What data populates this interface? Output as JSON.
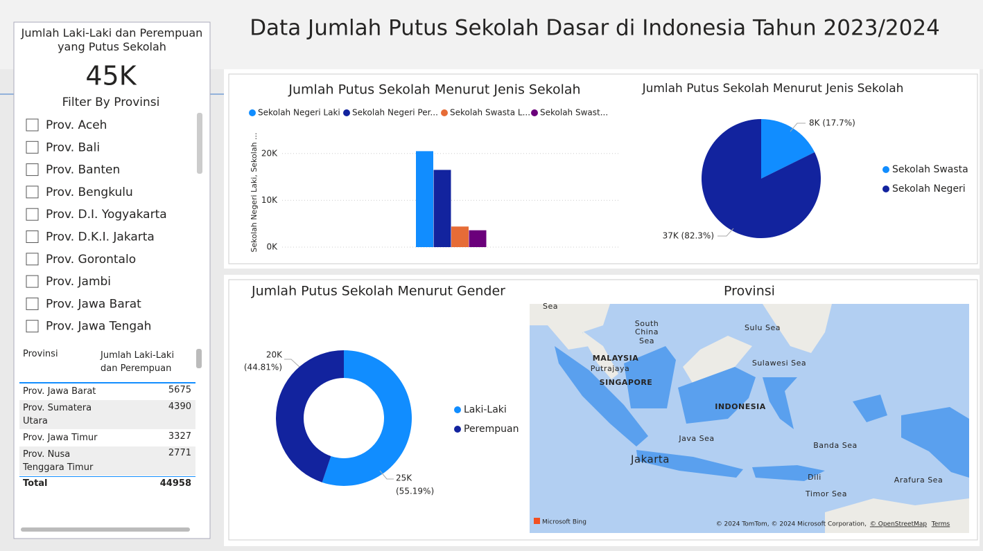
{
  "header": {
    "title": "Data Jumlah Putus Sekolah Dasar di Indonesia Tahun 2023/2024"
  },
  "card": {
    "title": "Jumlah Laki-Laki dan Perempuan yang Putus Sekolah",
    "value": "45K"
  },
  "slicer": {
    "title": "Filter By Provinsi",
    "items": [
      "Prov. Aceh",
      "Prov. Bali",
      "Prov. Banten",
      "Prov. Bengkulu",
      "Prov. D.I. Yogyakarta",
      "Prov. D.K.I. Jakarta",
      "Prov. Gorontalo",
      "Prov. Jambi",
      "Prov. Jawa Barat",
      "Prov. Jawa Tengah"
    ]
  },
  "table": {
    "columns": [
      "Provinsi",
      "Jumlah Laki-Laki dan Perempuan"
    ],
    "rows": [
      [
        "Prov. Jawa Barat",
        5675
      ],
      [
        "Prov. Sumatera Utara",
        4390
      ],
      [
        "Prov. Jawa Timur",
        3327
      ],
      [
        "Prov. Nusa Tenggara Timur",
        2771
      ]
    ],
    "total": [
      "Total",
      44958
    ]
  },
  "chart_data": [
    {
      "type": "bar",
      "title": "Jumlah Putus Sekolah Menurut Jenis Sekolah",
      "y_label": "Sekolah Negeri Laki, Sekolah ...",
      "categories": [
        null
      ],
      "series": [
        {
          "name": "Sekolah Negeri Laki",
          "color": "#118DFF",
          "values": [
            20500
          ]
        },
        {
          "name": "Sekolah Negeri Per...",
          "color": "#12239E",
          "values": [
            16500
          ]
        },
        {
          "name": "Sekolah Swasta L...",
          "color": "#E66C37",
          "values": [
            4400
          ]
        },
        {
          "name": "Sekolah Swast...",
          "color": "#6B007B",
          "values": [
            3600
          ]
        }
      ],
      "ylim": [
        0,
        21000
      ],
      "yticks": [
        {
          "value": 0,
          "label": "0K"
        },
        {
          "value": 10000,
          "label": "10K"
        },
        {
          "value": 20000,
          "label": "20K"
        }
      ],
      "grid": true
    },
    {
      "type": "pie",
      "title": "Jumlah Putus Sekolah Menurut Jenis Sekolah",
      "categories": [
        "Sekolah Swasta",
        "Sekolah Negeri"
      ],
      "values": [
        17.7,
        82.3
      ],
      "value_labels": [
        "8K (17.7%)",
        "37K (82.3%)"
      ],
      "colors": [
        "#118DFF",
        "#12239E"
      ]
    },
    {
      "type": "donut",
      "title": "Jumlah Putus Sekolah Menurut Gender",
      "categories": [
        "Laki-Laki",
        "Perempuan"
      ],
      "values": [
        55.19,
        44.81
      ],
      "value_labels": [
        [
          "25K",
          "(55.19%)"
        ],
        [
          "20K",
          "(44.81%)"
        ]
      ],
      "colors": [
        "#118DFF",
        "#12239E"
      ]
    }
  ],
  "map": {
    "title": "Provinsi",
    "labels": [
      "Sea",
      "South",
      "China",
      "Sea",
      "Sulu Sea",
      "MALAYSIA",
      "Putrajaya",
      "SINGAPORE",
      "Sulawesi Sea",
      "INDONESIA",
      "Java Sea",
      "Banda Sea",
      "Jakarta",
      "Dili",
      "Arafura Sea",
      "Timor Sea"
    ],
    "attribution": [
      "Microsoft Bing",
      "© 2024 TomTom, © 2024 Microsoft Corporation,",
      "© OpenStreetMap",
      "Terms"
    ]
  }
}
